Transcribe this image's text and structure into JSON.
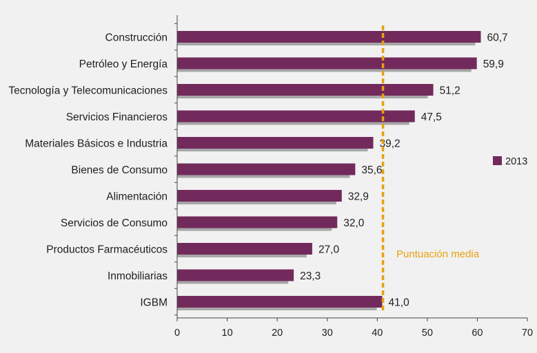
{
  "colors": {
    "background": "#f1f1f1",
    "bar": "#722a5c",
    "bar_shadow": "#a7a7a7",
    "axis": "#444444",
    "average_line": "#e8a10e",
    "average_label": "#e8a10e",
    "text": "#1e1e1e"
  },
  "chart_data": {
    "type": "bar",
    "orientation": "horizontal",
    "title": "",
    "xlabel": "",
    "ylabel": "",
    "xlim": [
      0,
      70
    ],
    "x_ticks": [
      0,
      10,
      20,
      30,
      40,
      50,
      60,
      70
    ],
    "x_tick_labels": [
      "0",
      "10",
      "20",
      "30",
      "40",
      "50",
      "60",
      "70"
    ],
    "grid": false,
    "categories": [
      "Construcción",
      "Petróleo y Energía",
      "Tecnología y Telecomunicaciones",
      "Servicios Financieros",
      "Materiales Básicos e Industria",
      "Bienes de Consumo",
      "Alimentación",
      "Servicios de Consumo",
      "Productos Farmacéuticos",
      "Inmobiliarias",
      "IGBM"
    ],
    "series": [
      {
        "name": "2013",
        "values": [
          60.7,
          59.9,
          51.2,
          47.5,
          39.2,
          35.6,
          32.9,
          32.0,
          27.0,
          23.3,
          41.0
        ],
        "value_labels": [
          "60,7",
          "59,9",
          "51,2",
          "47,5",
          "39,2",
          "35,6",
          "32,9",
          "32,0",
          "27,0",
          "23,3",
          "41,0"
        ]
      }
    ],
    "legend": {
      "position": "right",
      "entries": [
        "2013"
      ]
    },
    "reference_line": {
      "value": 41.0,
      "label": "Puntuación media",
      "style": "dashed"
    }
  }
}
